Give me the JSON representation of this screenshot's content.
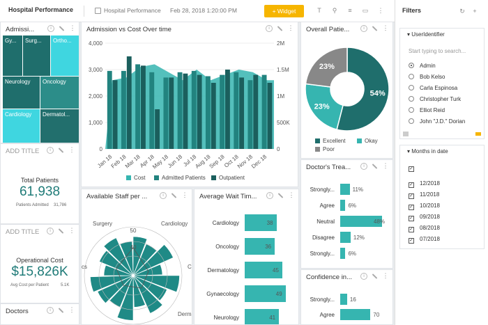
{
  "app_title": "Hospital Performance",
  "breadcrumb": "Hospital Performance",
  "date": "Feb 28, 2018 1:20:00 PM",
  "widget_button": "+ Widget",
  "colors": {
    "teal_dark": "#1f6e6c",
    "teal_mid": "#36b5b0",
    "teal_light": "#3fd6e0",
    "grey": "#888888",
    "accent": "#f6b500"
  },
  "treemap": {
    "title": "Admissi...",
    "cells": [
      {
        "label": "Gy...",
        "color": "#1f6e6c"
      },
      {
        "label": "Surg...",
        "color": "#1f6e6c"
      },
      {
        "label": "Ortho...",
        "color": "#3fd6e0"
      },
      {
        "label": "Neurology",
        "color": "#1f6e6c"
      },
      {
        "label": "Oncology",
        "color": "#2c8d89"
      },
      {
        "label": "Cardiology",
        "color": "#3fd6e0"
      },
      {
        "label": "Dermatol...",
        "color": "#226f6d"
      }
    ]
  },
  "add_title_1": "ADD TITLE",
  "total_patients": {
    "label": "Total Patients",
    "value": "61,938",
    "sub_label": "Patients Admitted",
    "sub_value": "31,786"
  },
  "add_title_2": "ADD TITLE",
  "operational_cost": {
    "label": "Operational Cost",
    "value": "$15,826K",
    "sub_label": "Avg Cost per Patient",
    "sub_value": "5.1K"
  },
  "doctors_title": "Doctors",
  "chart_data": [
    {
      "type": "bar",
      "title": "Admission vs Cost Over time",
      "categories": [
        "Jan 18",
        "Feb 18",
        "Mar 18",
        "Apr 18",
        "May 18",
        "Jun 18",
        "Jul 18",
        "Aug 18",
        "Sep 18",
        "Oct 18",
        "Nov 18",
        "Dec 18"
      ],
      "y_ticks": [
        "4,000",
        "3,000",
        "2,000",
        "1,000",
        "0"
      ],
      "y2_ticks": [
        "2M",
        "1.5M",
        "1M",
        "500K",
        "0"
      ],
      "ylim": [
        0,
        4000
      ],
      "y2lim": [
        0,
        2000000
      ],
      "series": [
        {
          "name": "Cost",
          "kind": "area",
          "values": [
            1300000,
            1350000,
            1550000,
            1600000,
            1450000,
            1300000,
            1500000,
            1300000,
            1400000,
            1500000,
            1450000,
            1300000
          ]
        },
        {
          "name": "Admitted Patients",
          "kind": "bar",
          "values": [
            2950,
            2950,
            3200,
            2900,
            2700,
            2900,
            2950,
            2750,
            2800,
            2900,
            2600,
            2800
          ]
        },
        {
          "name": "Outpatient",
          "kind": "bar",
          "values": [
            2600,
            3500,
            3150,
            1500,
            2700,
            2850,
            2800,
            2500,
            3000,
            2700,
            2800,
            2500
          ]
        }
      ]
    },
    {
      "type": "pie",
      "title": "Overall Patie...",
      "slices": [
        {
          "name": "Excellent",
          "value": 54,
          "label": "54%"
        },
        {
          "name": "Okay",
          "value": 23,
          "label": "23%"
        },
        {
          "name": "Poor",
          "value": 23,
          "label": "23%"
        }
      ]
    },
    {
      "type": "bar",
      "title": "Doctor's Trea...",
      "orientation": "horizontal",
      "categories": [
        "Strongly...",
        "Agree",
        "Neutral",
        "Disagree",
        "Strongly..."
      ],
      "values": [
        11,
        6,
        48,
        12,
        6
      ],
      "labels": [
        "11%",
        "6%",
        "48%",
        "12%",
        "6%"
      ],
      "xlim": [
        0,
        50
      ]
    },
    {
      "type": "bar",
      "title": "Available Staff per ...",
      "polar": true,
      "categories": [
        "Surgery",
        "Cardiology",
        "Co...",
        "Derma...",
        "...ics"
      ],
      "r_ticks": [
        "50",
        "40"
      ]
    },
    {
      "type": "bar",
      "title": "Average Wait Tim...",
      "orientation": "horizontal",
      "categories": [
        "Cardiology",
        "Oncology",
        "Dermatology",
        "Gynaecology",
        "Neurology"
      ],
      "values": [
        38,
        36,
        45,
        49,
        41
      ],
      "xlim": [
        0,
        50
      ]
    },
    {
      "type": "bar",
      "title": "Confidence in...",
      "orientation": "horizontal",
      "categories": [
        "Strongly...",
        "Agree"
      ],
      "values": [
        16,
        70
      ],
      "xlim": [
        0,
        100
      ]
    }
  ],
  "filters": {
    "title": "Filters",
    "user_identifier": {
      "label": "UserIdentifier",
      "placeholder": "Start typing to search...",
      "options": [
        "Admin",
        "Bob Kelso",
        "Carla Espinosa",
        "Christopher Turk",
        "Elliot Reid",
        "John \"J.D.\" Dorian"
      ]
    },
    "months": {
      "label": "Months in date",
      "options": [
        "12/2018",
        "11/2018",
        "10/2018",
        "09/2018",
        "08/2018",
        "07/2018"
      ]
    }
  }
}
